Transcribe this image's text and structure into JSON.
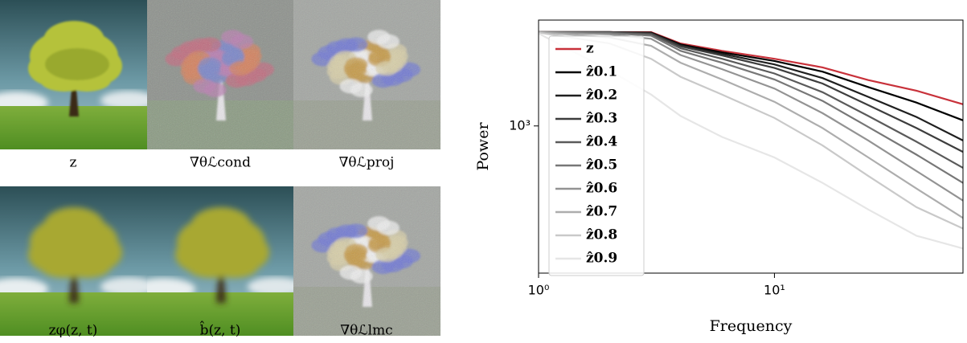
{
  "panels": [
    {
      "caption": "z"
    },
    {
      "caption": "∇θℒcond"
    },
    {
      "caption": "∇θℒproj"
    },
    {
      "caption": "zφ(z, t)"
    },
    {
      "caption": "b̂(z, t)"
    },
    {
      "caption": "∇θℒlmc"
    }
  ],
  "chart_data": {
    "type": "line",
    "xlabel": "Frequency",
    "ylabel": "Power",
    "log_x": true,
    "log_y": true,
    "xlim": [
      1,
      63
    ],
    "ylim": [
      245,
      2750
    ],
    "xticks": [
      {
        "value": 1,
        "label": "10⁰"
      },
      {
        "value": 10,
        "label": "10¹"
      }
    ],
    "yticks": [
      {
        "value": 1000,
        "label": "10³"
      }
    ],
    "legend": "upper left",
    "x": [
      1,
      2,
      3,
      4,
      6,
      10,
      16,
      25,
      40,
      63
    ],
    "series": [
      {
        "name": "z",
        "color": "#c8313a",
        "values": [
          2450,
          2450,
          2450,
          2200,
          2050,
          1900,
          1750,
          1550,
          1400,
          1230
        ]
      },
      {
        "name": "ẑ0.1",
        "color": "#000000",
        "values": [
          2450,
          2450,
          2440,
          2180,
          2020,
          1860,
          1680,
          1450,
          1250,
          1055
        ]
      },
      {
        "name": "ẑ0.2",
        "color": "#1f1f1f",
        "values": [
          2450,
          2450,
          2430,
          2160,
          1990,
          1800,
          1580,
          1320,
          1090,
          870
        ]
      },
      {
        "name": "ẑ0.3",
        "color": "#3d3d3d",
        "values": [
          2450,
          2450,
          2420,
          2140,
          1960,
          1740,
          1500,
          1220,
          980,
          780
        ]
      },
      {
        "name": "ẑ0.4",
        "color": "#5a5a5a",
        "values": [
          2450,
          2440,
          2400,
          2100,
          1900,
          1650,
          1380,
          1100,
          860,
          670
        ]
      },
      {
        "name": "ẑ0.5",
        "color": "#777777",
        "values": [
          2450,
          2430,
          2370,
          2050,
          1830,
          1560,
          1270,
          990,
          760,
          580
        ]
      },
      {
        "name": "ẑ0.6",
        "color": "#939393",
        "values": [
          2450,
          2400,
          2300,
          1970,
          1720,
          1430,
          1130,
          870,
          650,
          490
        ]
      },
      {
        "name": "ẑ0.7",
        "color": "#adadad",
        "values": [
          2450,
          2330,
          2150,
          1830,
          1560,
          1260,
          980,
          740,
          550,
          415
        ]
      },
      {
        "name": "ẑ0.8",
        "color": "#c9c9c9",
        "values": [
          2440,
          2200,
          1900,
          1600,
          1350,
          1080,
          830,
          620,
          460,
          375
        ]
      },
      {
        "name": "ẑ0.9",
        "color": "#e6e6e6",
        "values": [
          2420,
          1700,
          1350,
          1100,
          900,
          740,
          580,
          450,
          350,
          310
        ]
      }
    ]
  }
}
